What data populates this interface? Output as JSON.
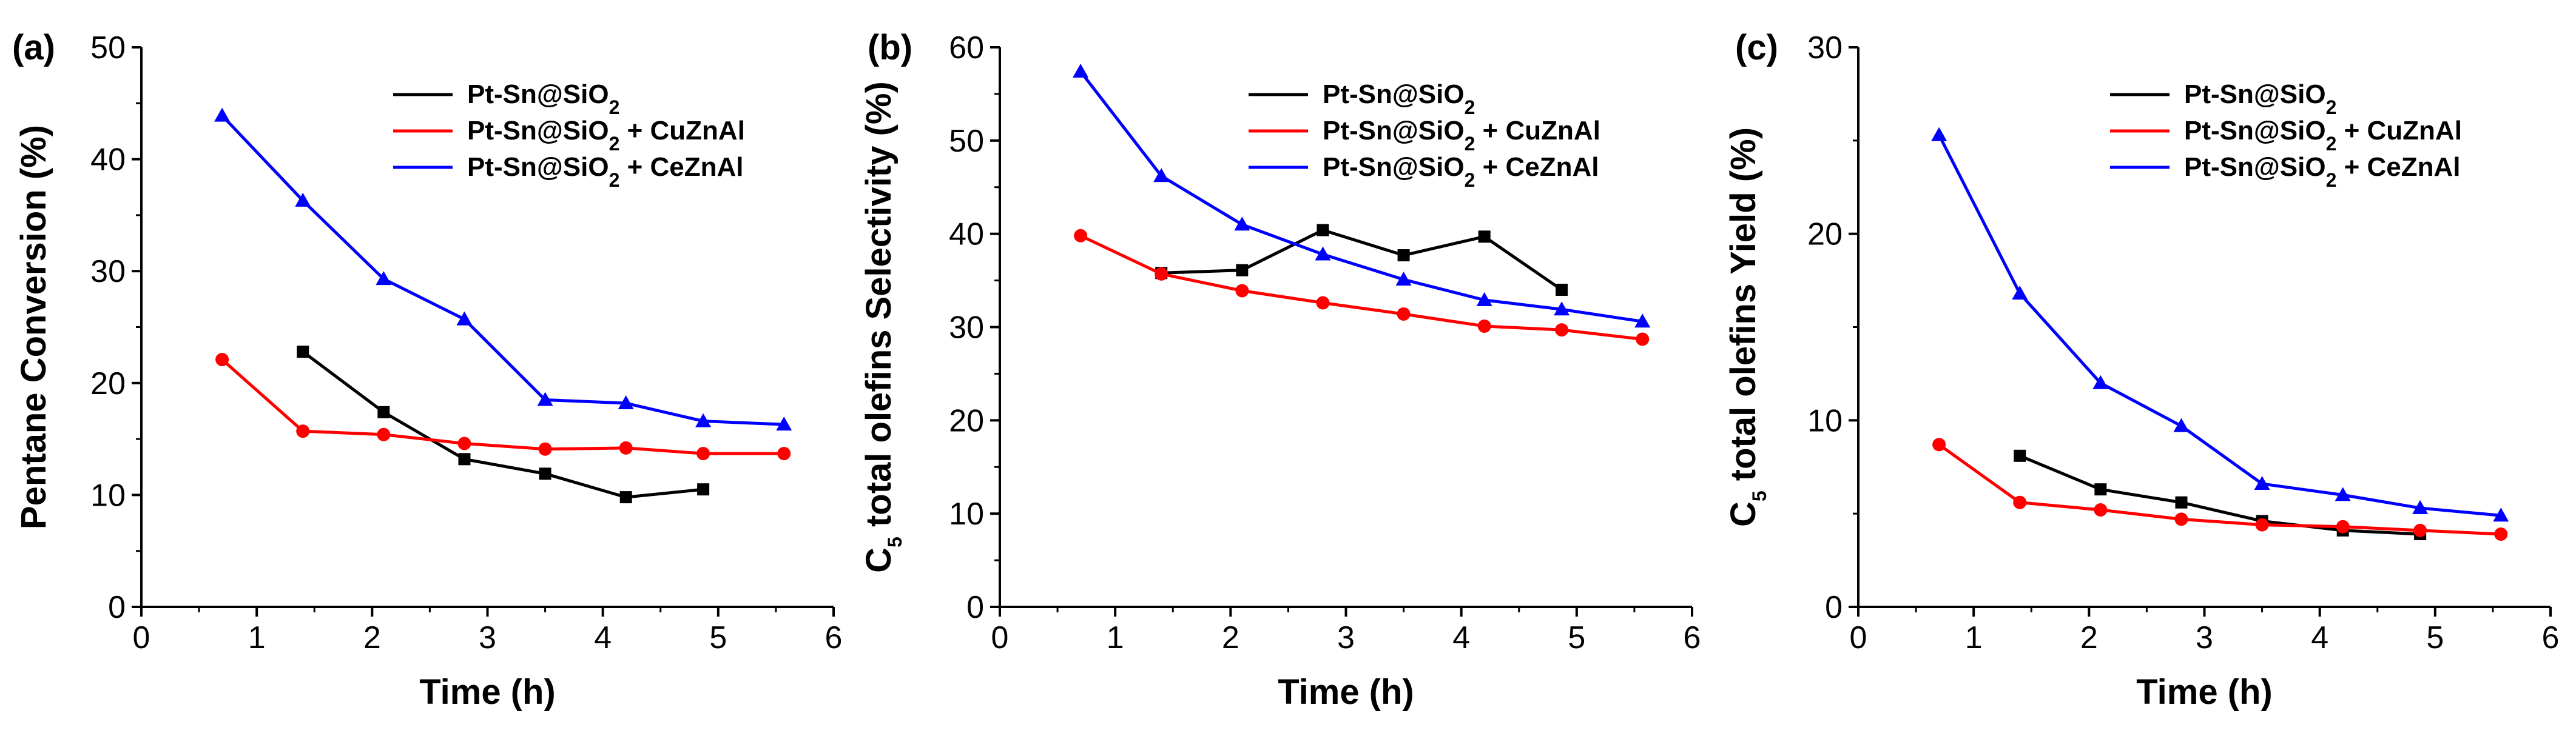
{
  "chart_data": [
    {
      "type": "line",
      "panel_label": "(a)",
      "title": "",
      "xlabel": "Time (h)",
      "ylabel": "Pentane Conversion (%)",
      "xlim": [
        0,
        6
      ],
      "ylim": [
        0,
        50
      ],
      "xticks": [
        "0",
        "1",
        "2",
        "3",
        "4",
        "5",
        "6"
      ],
      "yticks": [
        "0",
        "10",
        "20",
        "30",
        "40",
        "50"
      ],
      "ytick_values": [
        0,
        10,
        20,
        30,
        40,
        50
      ],
      "legend_position": "top-right",
      "series": [
        {
          "name": "Pt-Sn@SiO",
          "subscript": "2",
          "suffix": "",
          "color": "#000000",
          "marker": "square",
          "x": [
            1.4,
            2.1,
            2.8,
            3.5,
            4.2,
            4.87
          ],
          "y": [
            22.8,
            17.4,
            13.2,
            11.9,
            9.8,
            10.5
          ]
        },
        {
          "name": "Pt-Sn@SiO",
          "subscript": "2",
          "suffix": " + CuZnAl",
          "color": "#ff0000",
          "marker": "circle",
          "x": [
            0.7,
            1.4,
            2.1,
            2.8,
            3.5,
            4.2,
            4.87,
            5.57
          ],
          "y": [
            22.1,
            15.7,
            15.4,
            14.6,
            14.1,
            14.2,
            13.7,
            13.7
          ]
        },
        {
          "name": "Pt-Sn@SiO",
          "subscript": "2",
          "suffix": " + CeZnAl",
          "color": "#0000ff",
          "marker": "triangle",
          "x": [
            0.7,
            1.4,
            2.1,
            2.8,
            3.5,
            4.2,
            4.87,
            5.57
          ],
          "y": [
            43.9,
            36.3,
            29.3,
            25.7,
            18.5,
            18.2,
            16.6,
            16.3
          ]
        }
      ]
    },
    {
      "type": "line",
      "panel_label": "(b)",
      "title": "",
      "xlabel": "Time (h)",
      "ylabel_prefix": "C",
      "ylabel_subscript": "5",
      "ylabel": " total olefins Selectivity (%)",
      "xlim": [
        0,
        6
      ],
      "ylim": [
        0,
        60
      ],
      "xticks": [
        "0",
        "1",
        "2",
        "3",
        "4",
        "5",
        "6"
      ],
      "yticks": [
        "0",
        "10",
        "20",
        "30",
        "40",
        "50",
        "60"
      ],
      "ytick_values": [
        0,
        10,
        20,
        30,
        40,
        50,
        60
      ],
      "legend_position": "top-right",
      "series": [
        {
          "name": "Pt-Sn@SiO",
          "subscript": "2",
          "suffix": "",
          "color": "#000000",
          "marker": "square",
          "x": [
            1.4,
            2.1,
            2.8,
            3.5,
            4.2,
            4.87
          ],
          "y": [
            35.8,
            36.1,
            40.4,
            37.7,
            39.7,
            34.0
          ]
        },
        {
          "name": "Pt-Sn@SiO",
          "subscript": "2",
          "suffix": " + CuZnAl",
          "color": "#ff0000",
          "marker": "circle",
          "x": [
            0.7,
            1.4,
            2.1,
            2.8,
            3.5,
            4.2,
            4.87,
            5.57
          ],
          "y": [
            39.8,
            35.7,
            33.9,
            32.6,
            31.4,
            30.1,
            29.7,
            28.7
          ]
        },
        {
          "name": "Pt-Sn@SiO",
          "subscript": "2",
          "suffix": " + CeZnAl",
          "color": "#0000ff",
          "marker": "triangle",
          "x": [
            0.7,
            1.4,
            2.1,
            2.8,
            3.5,
            4.2,
            4.87,
            5.57
          ],
          "y": [
            57.4,
            46.2,
            41.0,
            37.8,
            35.1,
            32.9,
            31.9,
            30.6
          ]
        }
      ]
    },
    {
      "type": "line",
      "panel_label": "(c)",
      "title": "",
      "xlabel": "Time (h)",
      "ylabel_prefix": "C",
      "ylabel_subscript": "5",
      "ylabel": " total olefins Yield (%)",
      "xlim": [
        0,
        6
      ],
      "ylim": [
        0,
        30
      ],
      "xticks": [
        "0",
        "1",
        "2",
        "3",
        "4",
        "5",
        "6"
      ],
      "yticks": [
        "0",
        "10",
        "20",
        "30"
      ],
      "ytick_values": [
        0,
        10,
        20,
        30
      ],
      "legend_position": "top-right",
      "series": [
        {
          "name": "Pt-Sn@SiO",
          "subscript": "2",
          "suffix": "",
          "color": "#000000",
          "marker": "square",
          "x": [
            1.4,
            2.1,
            2.8,
            3.5,
            4.2,
            4.87
          ],
          "y": [
            8.1,
            6.3,
            5.6,
            4.6,
            4.1,
            3.9
          ]
        },
        {
          "name": "Pt-Sn@SiO",
          "subscript": "2",
          "suffix": " + CuZnAl",
          "color": "#ff0000",
          "marker": "circle",
          "x": [
            0.7,
            1.4,
            2.1,
            2.8,
            3.5,
            4.2,
            4.87,
            5.57
          ],
          "y": [
            8.7,
            5.6,
            5.2,
            4.7,
            4.4,
            4.3,
            4.1,
            3.9
          ]
        },
        {
          "name": "Pt-Sn@SiO",
          "subscript": "2",
          "suffix": " + CeZnAl",
          "color": "#0000ff",
          "marker": "triangle",
          "x": [
            0.7,
            1.4,
            2.1,
            2.8,
            3.5,
            4.2,
            4.87,
            5.57
          ],
          "y": [
            25.3,
            16.8,
            12.0,
            9.7,
            6.6,
            6.0,
            5.3,
            4.9
          ]
        }
      ]
    }
  ]
}
